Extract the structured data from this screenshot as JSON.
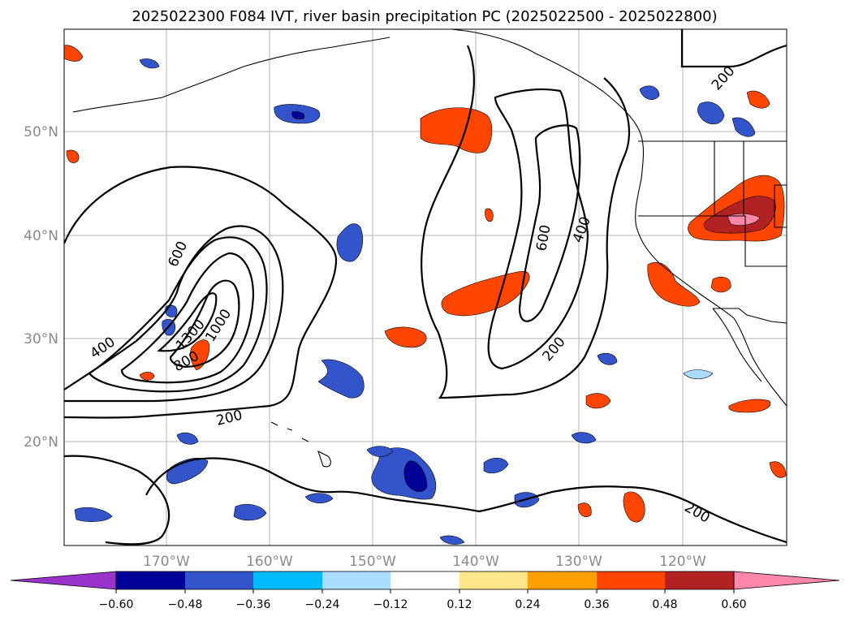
{
  "title": "2025022300 F084 IVT, river basin precipitation PC (2025022500 - 2025022800)",
  "lat_labels": [
    "50°N",
    "40°N",
    "30°N",
    "20°N"
  ],
  "lon_labels": [
    "170°W",
    "160°W",
    "150°W",
    "140°W",
    "130°W",
    "120°W"
  ],
  "ivt_contour_labels": [
    "600",
    "400",
    "1300",
    "1000",
    "800",
    "200",
    "600",
    "400",
    "200",
    "200",
    "200"
  ],
  "colorbar": {
    "ticks": [
      "−0.60",
      "−0.48",
      "−0.36",
      "−0.24",
      "−0.12",
      "0.12",
      "0.24",
      "0.36",
      "0.48",
      "0.60"
    ],
    "colors": [
      "#9933cc",
      "#000099",
      "#3355cc",
      "#00bbff",
      "#aadcff",
      "#ffffff",
      "#ffe68a",
      "#ffa000",
      "#ff4500",
      "#b22222",
      "#ff88aa"
    ]
  }
}
